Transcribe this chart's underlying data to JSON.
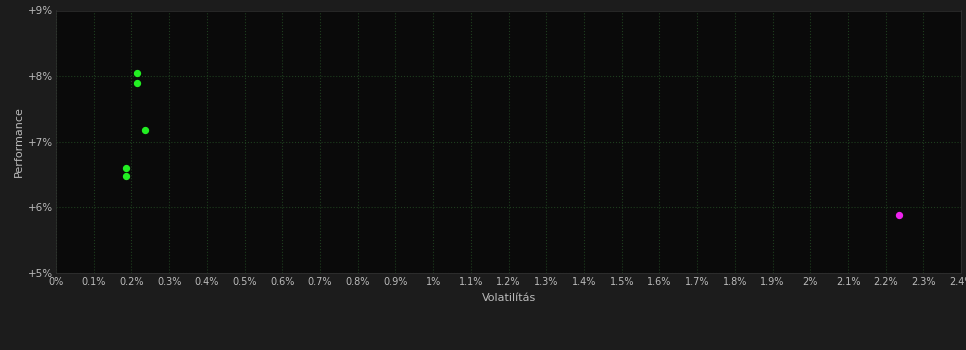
{
  "background_color": "#1c1c1c",
  "plot_bg_color": "#0a0a0a",
  "grid_color": "#1e3d1e",
  "text_color": "#bbbbbb",
  "xlabel": "Volatilítás",
  "ylabel": "Performance",
  "xlim": [
    0.0,
    0.024
  ],
  "ylim": [
    0.05,
    0.09
  ],
  "xtick_step": 0.001,
  "ytick_values": [
    0.05,
    0.06,
    0.07,
    0.08,
    0.09
  ],
  "green_points": [
    [
      0.00185,
      0.066
    ],
    [
      0.00185,
      0.0648
    ],
    [
      0.00235,
      0.0718
    ],
    [
      0.00215,
      0.0804
    ],
    [
      0.00215,
      0.079
    ]
  ],
  "magenta_points": [
    [
      0.02235,
      0.0588
    ]
  ],
  "point_size": 18
}
